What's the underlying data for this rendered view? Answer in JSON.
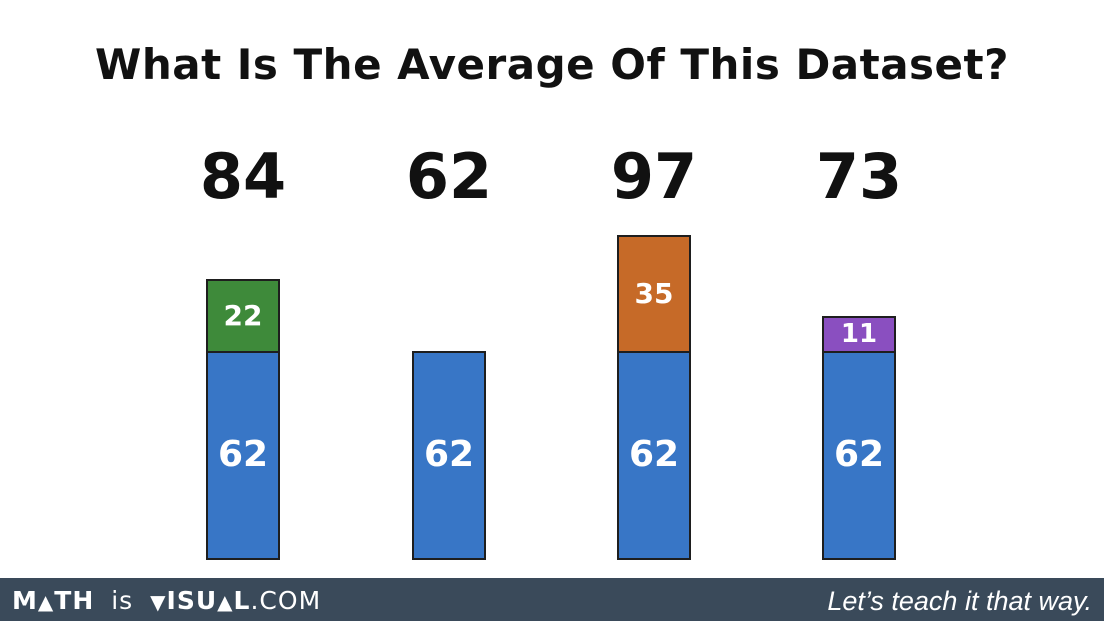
{
  "title": "What Is The Average Of This Dataset?",
  "colors": {
    "base": "#3876c6",
    "green": "#3e8a3a",
    "orange": "#c66a28",
    "purple": "#8a4fc0",
    "footer": "#3a4a5a"
  },
  "chart_data": {
    "type": "bar",
    "stacked": true,
    "title": "What Is The Average Of This Dataset?",
    "categories": [
      "84",
      "62",
      "97",
      "73"
    ],
    "totals": [
      84,
      62,
      97,
      73
    ],
    "series": [
      {
        "values": [
          62,
          62,
          62,
          62
        ],
        "color": "#3876c6"
      },
      {
        "values": [
          22,
          0,
          35,
          11
        ],
        "colors": [
          "#3e8a3a",
          null,
          "#c66a28",
          "#8a4fc0"
        ]
      }
    ],
    "ylim": [
      0,
      97
    ],
    "grid": false,
    "legend": "none"
  },
  "footer": {
    "brand_math": "M",
    "brand_math_a": "▲",
    "brand_math_rest": "TH",
    "brand_is": "is",
    "brand_visual_v": "▼",
    "brand_visual_mid": "ISU",
    "brand_visual_a": "▲",
    "brand_visual_end": "L",
    "brand_com": ".COM",
    "tagline": "Let’s teach it that way."
  }
}
